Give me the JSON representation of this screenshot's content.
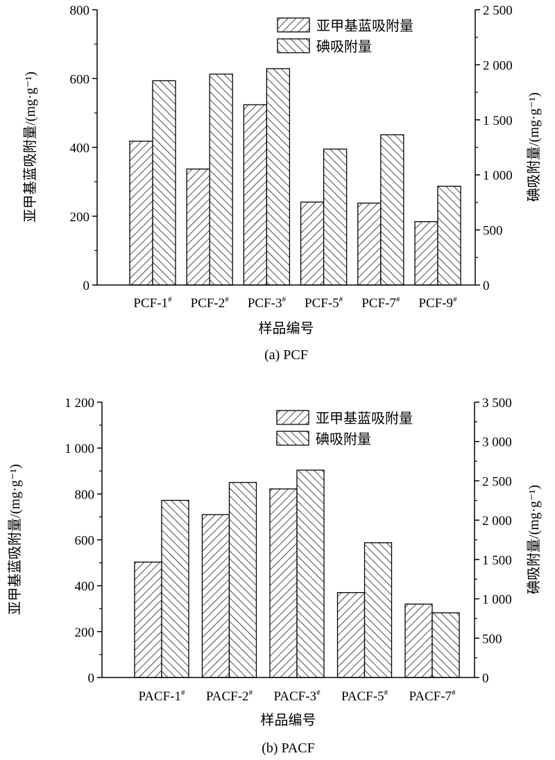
{
  "chart_data": [
    {
      "type": "bar",
      "caption": "(a) PCF",
      "xlabel": "样品编号",
      "ylabel_left": "亚甲基蓝吸附量/(mg·g⁻¹)",
      "ylabel_right": "碘吸附量/(mg·g⁻¹)",
      "categories": [
        "PCF-1#",
        "PCF-2#",
        "PCF-3#",
        "PCF-5#",
        "PCF-7#",
        "PCF-9#"
      ],
      "series": [
        {
          "name": "亚甲基蓝吸附量",
          "axis": "left",
          "pattern": "hatch-forward",
          "values": [
            418,
            337,
            524,
            241,
            238,
            184
          ]
        },
        {
          "name": "碘吸附量",
          "axis": "right",
          "pattern": "hatch-back",
          "values": [
            1855,
            1915,
            1965,
            1234,
            1364,
            897
          ]
        }
      ],
      "ylim_left": [
        0,
        800
      ],
      "yticks_left": [
        0,
        200,
        400,
        600,
        800
      ],
      "ytick_labels_left": [
        "0",
        "200",
        "400",
        "600",
        "800"
      ],
      "ylim_right": [
        0,
        2500
      ],
      "yticks_right": [
        0,
        500,
        1000,
        1500,
        2000,
        2500
      ],
      "ytick_labels_right": [
        "0",
        "500",
        "1 000",
        "1 500",
        "2 000",
        "2 500"
      ],
      "legend": "top-right",
      "grid": false
    },
    {
      "type": "bar",
      "caption": "(b) PACF",
      "xlabel": "样品编号",
      "ylabel_left": "亚甲基蓝吸附量/(mg·g⁻¹)",
      "ylabel_right": "碘吸附量/(mg·g⁻¹)",
      "categories": [
        "PACF-1#",
        "PACF-2#",
        "PACF-3#",
        "PACF-5#",
        "PACF-7#"
      ],
      "series": [
        {
          "name": "亚甲基蓝吸附量",
          "axis": "left",
          "pattern": "hatch-forward",
          "values": [
            503,
            710,
            822,
            370,
            320
          ]
        },
        {
          "name": "碘吸附量",
          "axis": "right",
          "pattern": "hatch-back",
          "values": [
            2252,
            2480,
            2636,
            1713,
            822
          ]
        }
      ],
      "ylim_left": [
        0,
        1200
      ],
      "yticks_left": [
        0,
        200,
        400,
        600,
        800,
        1000,
        1200
      ],
      "ytick_labels_left": [
        "0",
        "200",
        "400",
        "600",
        "800",
        "1 000",
        "1 200"
      ],
      "ylim_right": [
        0,
        3500
      ],
      "yticks_right": [
        0,
        500,
        1000,
        1500,
        2000,
        2500,
        3000,
        3500
      ],
      "ytick_labels_right": [
        "0",
        "500",
        "1 000",
        "1 500",
        "2 000",
        "2 500",
        "3 000",
        "3 500"
      ],
      "legend": "top-right",
      "grid": false
    }
  ]
}
